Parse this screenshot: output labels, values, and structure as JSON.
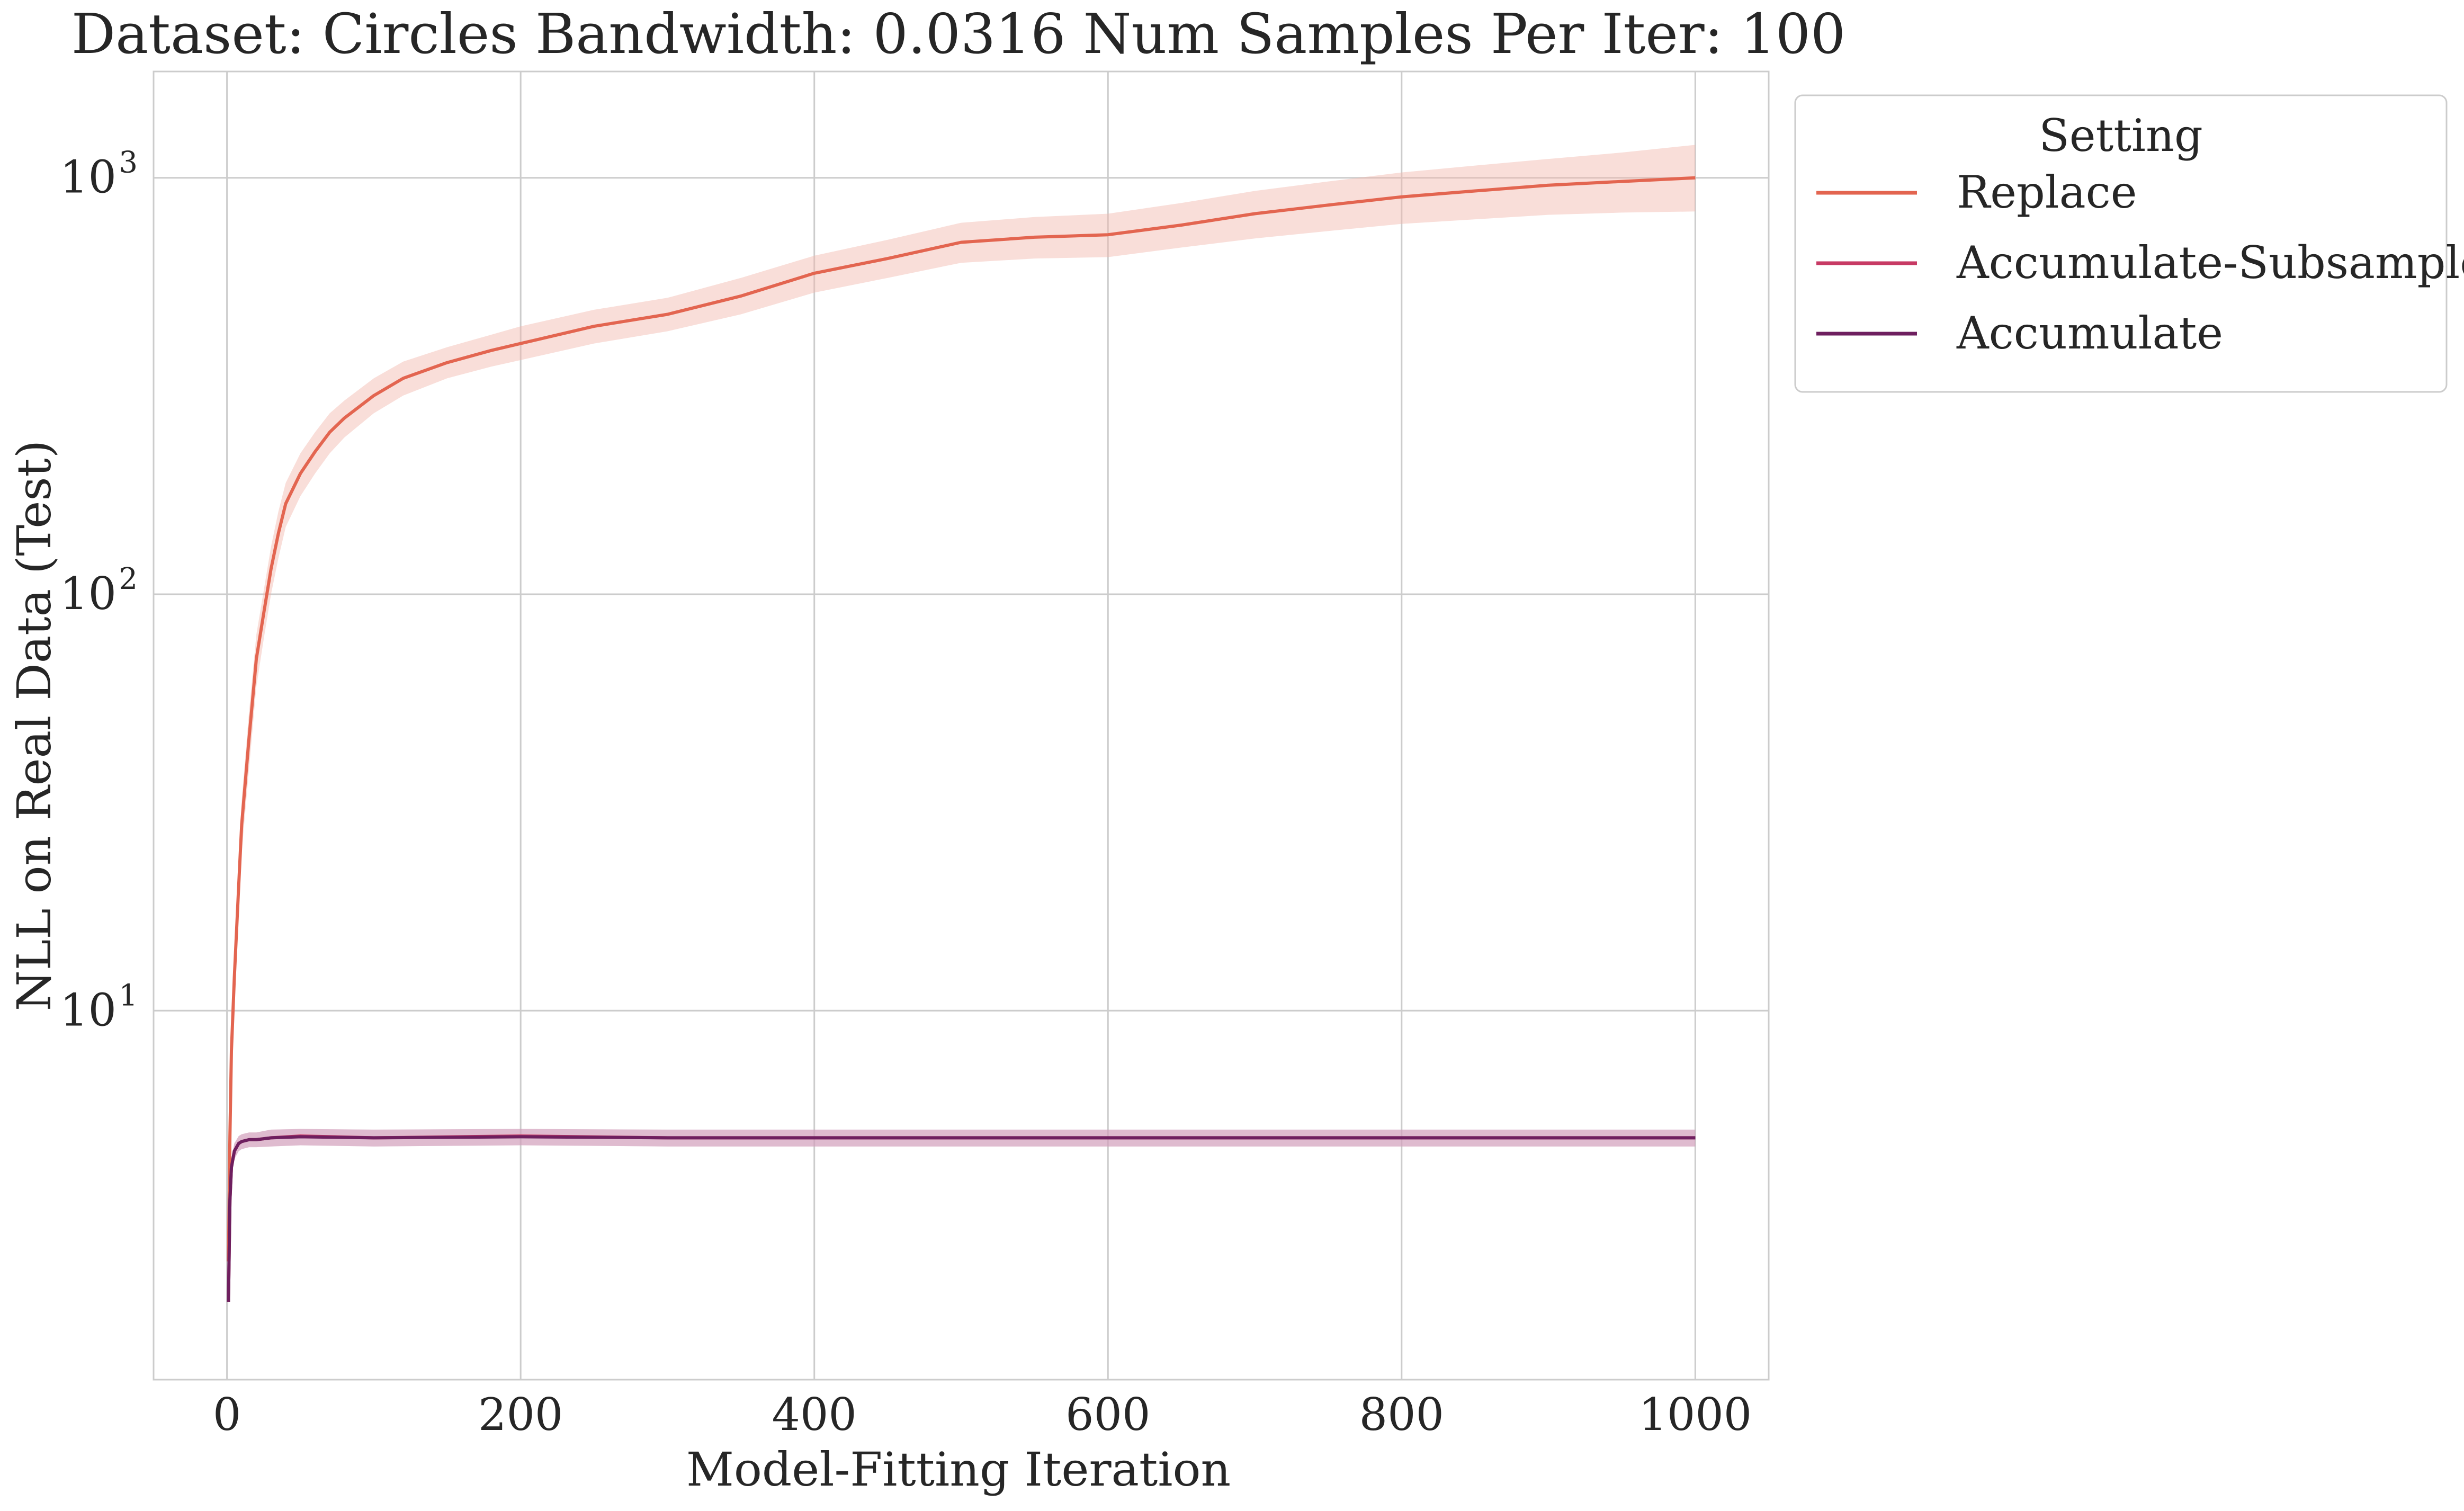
{
  "chart_data": {
    "type": "line",
    "title": "Dataset: Circles Bandwidth: 0.0316 Num Samples Per Iter: 100",
    "xlabel": "Model-Fitting Iteration",
    "ylabel": "NLL on Real Data (Test)",
    "xlim": [
      -50,
      1050
    ],
    "ylim": [
      1.3,
      1800
    ],
    "yscale": "log",
    "grid": true,
    "x_ticks": [
      0,
      200,
      400,
      600,
      800,
      1000
    ],
    "x_tick_labels": [
      "0",
      "200",
      "400",
      "600",
      "800",
      "1000"
    ],
    "y_ticks": [
      10,
      100,
      1000
    ],
    "y_tick_labels": [
      {
        "base": "10",
        "exp": "1"
      },
      {
        "base": "10",
        "exp": "2"
      },
      {
        "base": "10",
        "exp": "3"
      }
    ],
    "legend": {
      "title": "Setting",
      "position": "outside-right-top"
    },
    "series": [
      {
        "name": "Replace",
        "color": "#e36550",
        "band_color": "#f2b5ab",
        "x": [
          1,
          2,
          3,
          5,
          8,
          10,
          15,
          20,
          25,
          30,
          35,
          40,
          50,
          60,
          70,
          80,
          100,
          120,
          150,
          180,
          200,
          250,
          300,
          350,
          400,
          450,
          500,
          550,
          600,
          650,
          700,
          750,
          800,
          850,
          900,
          950,
          1000
        ],
        "y": [
          2.5,
          5,
          8,
          12,
          20,
          28,
          45,
          70,
          90,
          115,
          140,
          165,
          195,
          220,
          245,
          265,
          300,
          330,
          360,
          385,
          400,
          440,
          470,
          520,
          590,
          640,
          700,
          720,
          730,
          770,
          820,
          860,
          900,
          930,
          960,
          980,
          1000
        ],
        "lower": [
          2.3,
          4.5,
          7,
          10.5,
          17,
          24,
          38,
          60,
          78,
          100,
          122,
          145,
          172,
          195,
          218,
          238,
          272,
          300,
          330,
          352,
          365,
          400,
          428,
          470,
          530,
          575,
          625,
          640,
          645,
          680,
          715,
          745,
          775,
          795,
          815,
          825,
          830
        ],
        "upper": [
          2.7,
          5.5,
          9,
          13.5,
          23,
          32,
          52,
          80,
          102,
          130,
          158,
          185,
          218,
          245,
          272,
          292,
          330,
          362,
          392,
          420,
          440,
          482,
          515,
          575,
          650,
          710,
          780,
          805,
          820,
          870,
          930,
          980,
          1030,
          1070,
          1110,
          1150,
          1200
        ]
      },
      {
        "name": "Accumulate-Subsample",
        "color": "#c73a64",
        "band_color": "#eaa5b8",
        "x": [
          1,
          2,
          3,
          5,
          8,
          10,
          15,
          20,
          30,
          50,
          100,
          200,
          300,
          400,
          500,
          600,
          700,
          800,
          900,
          1000
        ],
        "y": [
          2.0,
          3.5,
          4.2,
          4.6,
          4.8,
          4.85,
          4.9,
          4.9,
          4.95,
          5.0,
          4.95,
          5.0,
          4.95,
          4.95,
          4.95,
          4.95,
          4.95,
          4.95,
          4.95,
          4.95
        ],
        "lower": [
          1.95,
          3.3,
          4.0,
          4.4,
          4.6,
          4.65,
          4.7,
          4.7,
          4.72,
          4.75,
          4.72,
          4.75,
          4.72,
          4.72,
          4.72,
          4.72,
          4.72,
          4.72,
          4.72,
          4.72
        ],
        "upper": [
          2.05,
          3.7,
          4.4,
          4.8,
          5.0,
          5.05,
          5.1,
          5.1,
          5.18,
          5.2,
          5.18,
          5.2,
          5.18,
          5.18,
          5.18,
          5.18,
          5.18,
          5.18,
          5.18,
          5.18
        ]
      },
      {
        "name": "Accumulate",
        "color": "#6e1f5f",
        "band_color": "#c49bbd",
        "x": [
          1,
          2,
          3,
          5,
          8,
          10,
          15,
          20,
          30,
          50,
          100,
          200,
          300,
          400,
          500,
          600,
          700,
          800,
          900,
          1000
        ],
        "y": [
          2.0,
          3.5,
          4.2,
          4.6,
          4.8,
          4.85,
          4.9,
          4.9,
          4.95,
          4.98,
          4.95,
          4.98,
          4.95,
          4.95,
          4.95,
          4.95,
          4.95,
          4.95,
          4.95,
          4.95
        ],
        "lower": [
          1.95,
          3.3,
          4.0,
          4.4,
          4.6,
          4.65,
          4.7,
          4.7,
          4.72,
          4.75,
          4.72,
          4.75,
          4.72,
          4.72,
          4.72,
          4.72,
          4.72,
          4.72,
          4.72,
          4.72
        ],
        "upper": [
          2.05,
          3.7,
          4.4,
          4.8,
          5.0,
          5.05,
          5.1,
          5.1,
          5.18,
          5.2,
          5.18,
          5.2,
          5.18,
          5.18,
          5.18,
          5.18,
          5.18,
          5.18,
          5.18,
          5.18
        ]
      }
    ]
  }
}
